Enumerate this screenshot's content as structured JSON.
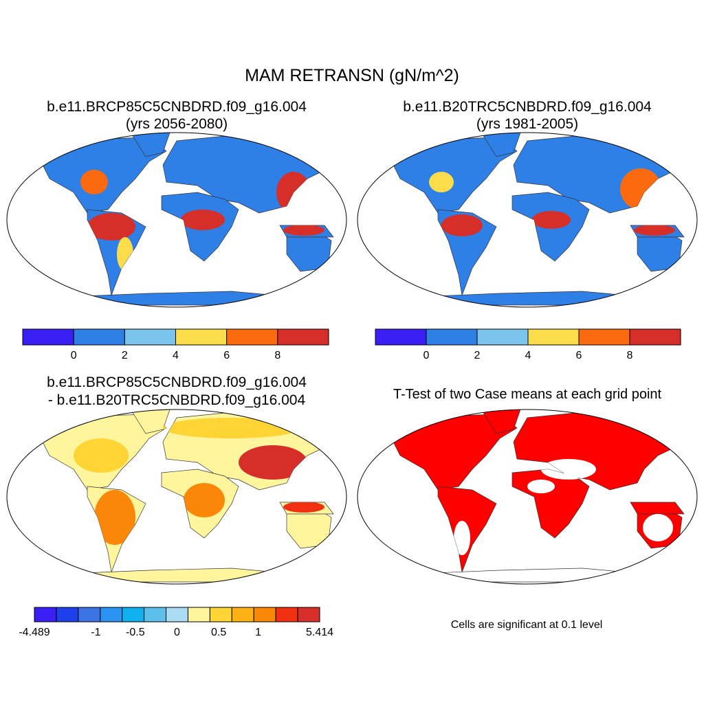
{
  "title": "MAM RETRANSN (gN/m^2)",
  "panels": [
    {
      "title": [
        "b.e11.BRCP85C5CNBDRD.f09_g16.004",
        "(yrs 2056-2080)"
      ]
    },
    {
      "title": [
        "b.e11.B20TRC5CNBDRD.f09_g16.004",
        "(yrs 1981-2005)"
      ]
    },
    {
      "title": [
        "b.e11.BRCP85C5CNBDRD.f09_g16.004",
        "- b.e11.B20TRC5CNBDRD.f09_g16.004"
      ]
    },
    {
      "title": [
        "T-Test of two Case means at each grid point"
      ]
    }
  ],
  "colorbars": [
    {
      "colors": [
        "#3a1ff5",
        "#2e7fe6",
        "#7bc4ee",
        "#fbdc4b",
        "#fb6a0e",
        "#d62f2a"
      ],
      "ticks": [
        0,
        2,
        4,
        6,
        8
      ]
    },
    {
      "colors": [
        "#3a1ff5",
        "#2e7fe6",
        "#7bc4ee",
        "#fbdc4b",
        "#fb6a0e",
        "#d62f2a"
      ],
      "ticks": [
        0,
        2,
        4,
        6,
        8
      ]
    },
    {
      "colors": [
        "#3a1ff5",
        "#1f3fea",
        "#3b72e4",
        "#2a92f0",
        "#10b0ee",
        "#5cc0ea",
        "#a9dbf3",
        "#fff59d",
        "#fed535",
        "#fcb115",
        "#fb8708",
        "#f03010",
        "#d62f2a"
      ],
      "ticks": [
        -4.489,
        -1,
        -0.5,
        0,
        0.5,
        1,
        5.414
      ]
    }
  ],
  "footnote": "Cells are significant at 0.1 level"
}
